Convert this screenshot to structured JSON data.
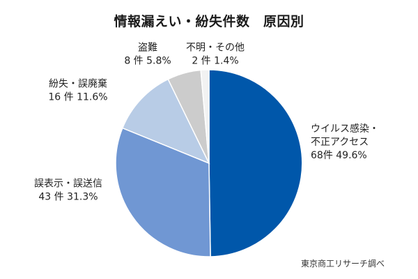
{
  "chart_data": {
    "type": "pie",
    "title": "情報漏えい・紛失件数　原因別",
    "unit": "件",
    "slices": [
      {
        "name_lines": [
          "ウイルス感染・",
          "不正アクセス"
        ],
        "count_label": "68件",
        "count": 68,
        "percent": 49.6,
        "percent_label": "49.6%",
        "color": "#0057aa",
        "label_anchor": "start"
      },
      {
        "name_lines": [
          "誤表示・誤送信"
        ],
        "count_label": "43 件",
        "count": 43,
        "percent": 31.3,
        "percent_label": "31.3%",
        "color": "#7097d3",
        "label_anchor": "middle"
      },
      {
        "name_lines": [
          "紛失・誤廃棄"
        ],
        "count_label": "16 件",
        "count": 16,
        "percent": 11.6,
        "percent_label": "11.6%",
        "color": "#b8cce6",
        "label_anchor": "middle"
      },
      {
        "name_lines": [
          "盗難"
        ],
        "count_label": "8 件",
        "count": 8,
        "percent": 5.8,
        "percent_label": "5.8%",
        "color": "#cccccc",
        "label_anchor": "middle"
      },
      {
        "name_lines": [
          "不明・その他"
        ],
        "count_label": "2 件",
        "count": 2,
        "percent": 1.4,
        "percent_label": "1.4%",
        "color": "#f2f2f2",
        "label_anchor": "middle"
      }
    ],
    "start": "12 o'clock",
    "direction": "clockwise"
  },
  "source": "東京商工リサーチ調べ"
}
